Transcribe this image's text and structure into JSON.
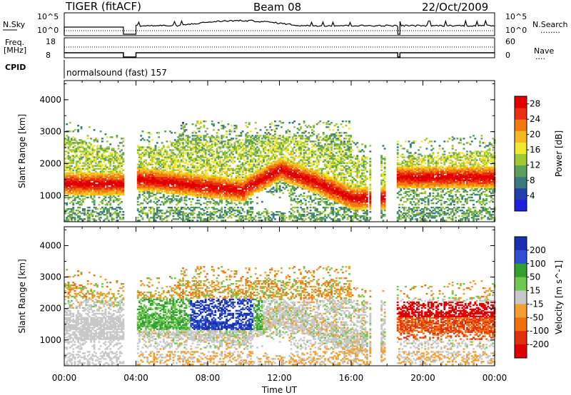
{
  "header": {
    "station": "TIGER (fitACF)",
    "beam": "Beam 08",
    "date": "22/Oct/2009"
  },
  "status_panel": {
    "nsky_label": "N.Sky",
    "nsearch_label": "N.Search",
    "nsearch_dots": "........",
    "count_ticks": [
      "10^5",
      "10^0"
    ],
    "freq_label": "Freq.",
    "freq_unit": "[MHz]",
    "freq_ticks": [
      "18",
      "8"
    ],
    "nave_label": "Nave",
    "nave_dots": "....",
    "nave_ticks": [
      "60",
      "0"
    ],
    "cpid_label": "CPID",
    "cpid_value": "normalsound (fast) 157"
  },
  "chart_data": [
    {
      "type": "heatmap",
      "name": "power",
      "xlabel": "",
      "ylabel": "Slant Range [km]",
      "x_ticks": [
        "00:00",
        "04:00",
        "08:00",
        "12:00",
        "16:00",
        "20:00",
        "00:00"
      ],
      "y_ticks": [
        1000,
        2000,
        3000,
        4000
      ],
      "ylim": [
        180,
        4600
      ],
      "data_gap_hours": [
        [
          3.3,
          4.0
        ]
      ],
      "colorbar": {
        "label": "Power [dB]",
        "ticks": [
          4,
          8,
          12,
          16,
          20,
          24,
          28
        ],
        "range": [
          0,
          30
        ],
        "colors": [
          "#1f1fe0",
          "#1f3faf",
          "#3a7a7a",
          "#5aa05a",
          "#a0c832",
          "#f0e830",
          "#f5b820",
          "#f07a10",
          "#e83010",
          "#e00000"
        ]
      }
    },
    {
      "type": "heatmap",
      "name": "velocity",
      "xlabel": "Time UT",
      "ylabel": "Slant Range [km]",
      "x_ticks": [
        "00:00",
        "04:00",
        "08:00",
        "12:00",
        "16:00",
        "20:00",
        "00:00"
      ],
      "y_ticks": [
        1000,
        2000,
        3000,
        4000
      ],
      "ylim": [
        180,
        4600
      ],
      "data_gap_hours": [
        [
          3.3,
          4.0
        ]
      ],
      "colorbar": {
        "label": "Velocity [m s^-1]",
        "ticks": [
          "200",
          "100",
          "50",
          "15",
          "-15",
          "-50",
          "-100",
          "-200"
        ],
        "colors": [
          "#1a2fb0",
          "#2f50d0",
          "#30a030",
          "#70c850",
          "#c8c8c8",
          "#f0a030",
          "#f07010",
          "#e03010",
          "#e00000"
        ]
      }
    }
  ]
}
